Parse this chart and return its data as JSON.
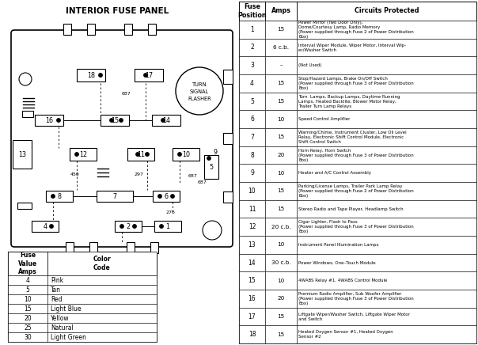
{
  "title": "INTERIOR FUSE PANEL",
  "table_headers": [
    "Fuse\nPosition",
    "Amps",
    "Circuits Protected"
  ],
  "fuse_data": [
    [
      "1",
      "15",
      "Power Mirror (Two Door Only),\nDome/Courtesy Lamp, Radio Memory\n(Power supplied through Fuse 2 of Power Distribution\nBox)"
    ],
    [
      "2",
      "6 c.b.",
      "Interval Wiper Module, Wiper Motor, Interval Wip-\ner/Washer Switch"
    ],
    [
      "3",
      "–",
      "(Not Used)"
    ],
    [
      "4",
      "15",
      "Stop/Hazard Lamps, Brake On/Off Switch\n(Power supplied through Fuse 3 of Power Distribution\nBox)"
    ],
    [
      "5",
      "15",
      "Turn  Lamps, Backup Lamps, Daytime Running\nLamps, Heated Backlite, Blower Motor Relay,\nTrailer Turn Lamp Relays"
    ],
    [
      "6",
      "10",
      "Speed Control Amplifier"
    ],
    [
      "7",
      "15",
      "Warning/Chime, Instrument Cluster, Low Oil Level\nRelay, Electronic Shift Control Module, Electronic\nShift Control Switch"
    ],
    [
      "8",
      "20",
      "Horn Relay, Horn Switch\n(Power supplied through Fuse 3 of Power Distribution\nBox)"
    ],
    [
      "9",
      "10",
      "Heater and A/C Control Assembly"
    ],
    [
      "10",
      "15",
      "Parking/License Lamps, Trailer Park Lamp Relay\n(Power supplied through Fuse 2 of Power Distribution\nBox)"
    ],
    [
      "11",
      "15",
      "Stereo Radio and Tape Player, Headlamp Switch"
    ],
    [
      "12",
      "20 c.b.",
      "Cigar Lighter, Flash to Pass\n(Power supplied through Fuse 3 of Power Distribution\nBox)"
    ],
    [
      "13",
      "10",
      "Instrument Panel Illumination Lamps"
    ],
    [
      "14",
      "30 c.b.",
      "Power Windows, One–Touch Module"
    ],
    [
      "15",
      "10",
      "4WABS Relay #1, 4WABS Control Module"
    ],
    [
      "16",
      "20",
      "Premium Radio Amplifier, Sub Woofer Amplifier\n(Power supplied through Fuse 3 of Power Distribution\nBox)"
    ],
    [
      "17",
      "15",
      "Liftgate Wiper/Washer Switch, Liftgate Wiper Motor\nand Switch"
    ],
    [
      "18",
      "15",
      "Heated Oxygen Sensor #1, Heated Oxygen\nSensor #2"
    ]
  ],
  "legend_headers": [
    "Fuse\nValue\nAmps",
    "Color\nCode"
  ],
  "legend_data": [
    [
      "4",
      "Pink"
    ],
    [
      "5",
      "Tan"
    ],
    [
      "10",
      "Red"
    ],
    [
      "15",
      "Light Blue"
    ],
    [
      "20",
      "Yellow"
    ],
    [
      "25",
      "Natural"
    ],
    [
      "30",
      "Light Green"
    ]
  ],
  "bg_color": "#ffffff"
}
